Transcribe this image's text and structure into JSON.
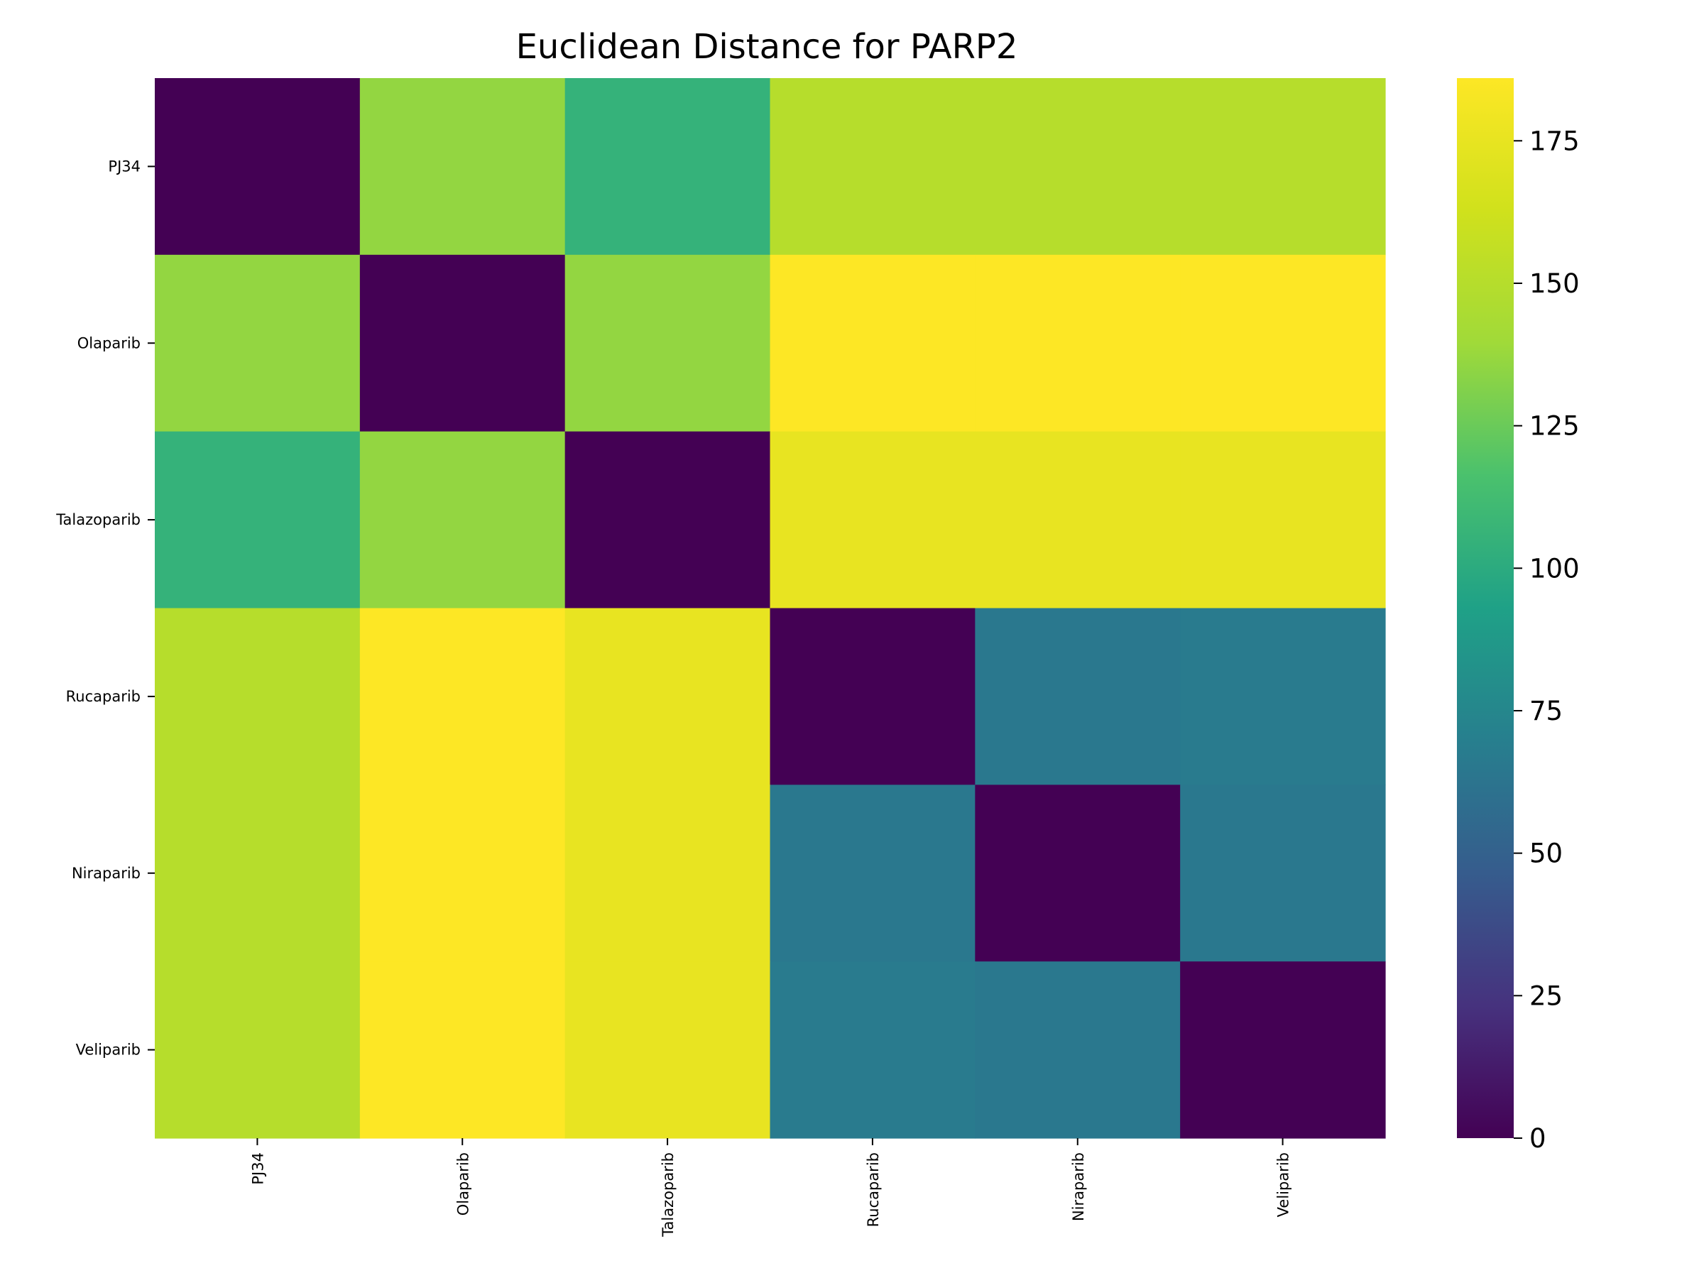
{
  "chart_data": {
    "type": "heatmap",
    "title": "Euclidean Distance for PARP2",
    "xlabel": "",
    "ylabel": "",
    "x_categories": [
      "PJ34",
      "Olaparib",
      "Talazoparib",
      "Rucaparib",
      "Niraparib",
      "Veliparib"
    ],
    "y_categories": [
      "PJ34",
      "Olaparib",
      "Talazoparib",
      "Rucaparib",
      "Niraparib",
      "Veliparib"
    ],
    "values": [
      [
        0,
        136,
        105,
        150,
        150,
        150
      ],
      [
        136,
        0,
        136,
        186,
        186,
        186
      ],
      [
        105,
        136,
        0,
        175,
        175,
        175
      ],
      [
        150,
        186,
        175,
        0,
        65,
        67
      ],
      [
        150,
        186,
        175,
        65,
        0,
        65
      ],
      [
        150,
        186,
        175,
        67,
        65,
        0
      ]
    ],
    "colormap": "viridis",
    "colorbar": {
      "vmin": 0,
      "vmax": 186,
      "ticks": [
        0,
        25,
        50,
        75,
        100,
        125,
        150,
        175
      ]
    },
    "grid": false
  }
}
